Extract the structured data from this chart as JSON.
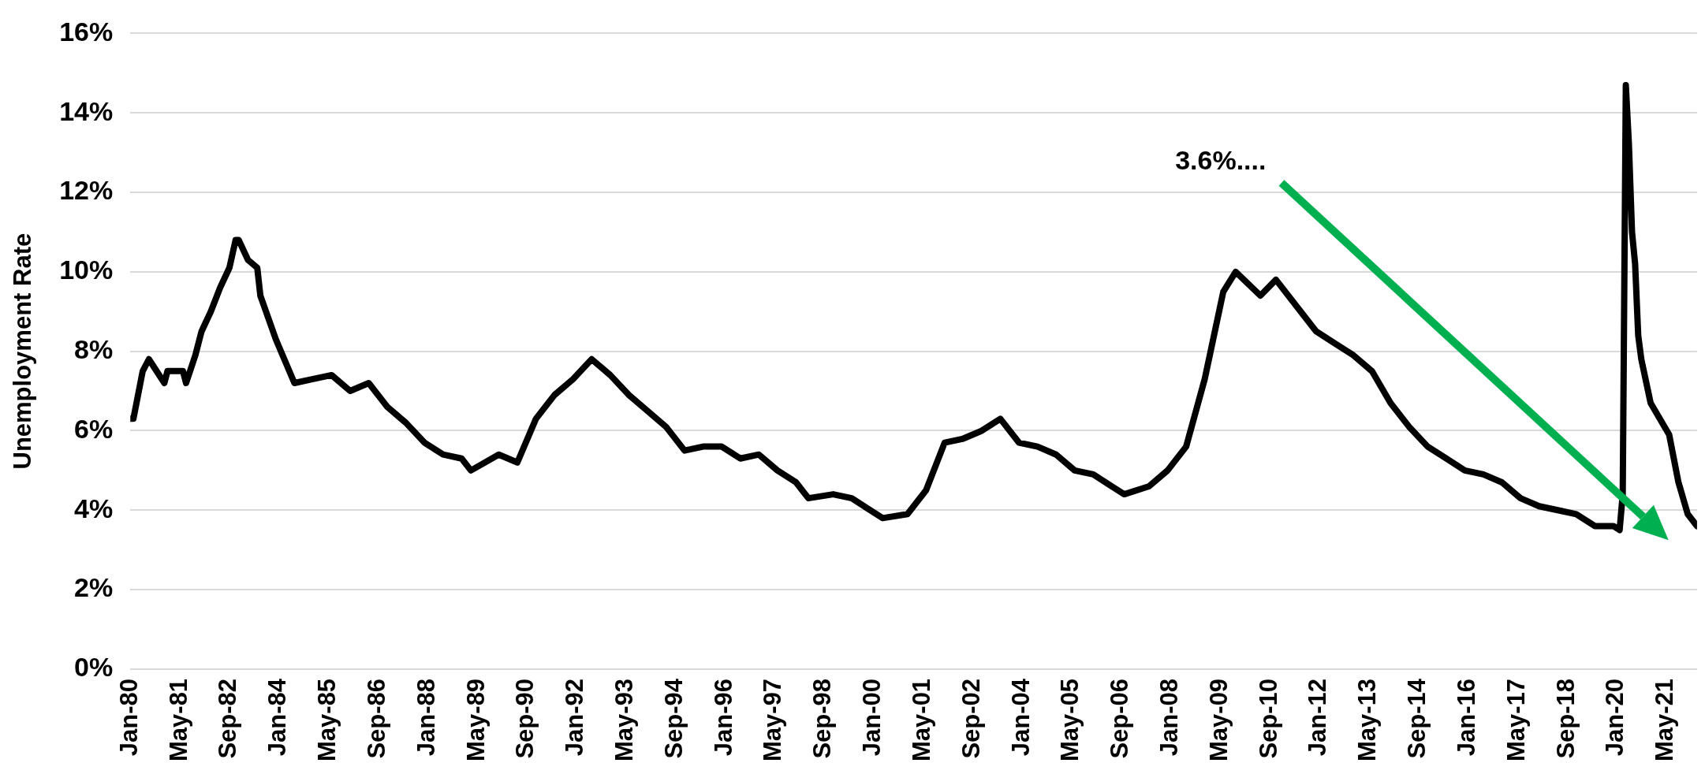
{
  "chart_data": {
    "type": "line",
    "ylabel": "Unemployment Rate",
    "color": "#000000",
    "grid": "y",
    "legend": false,
    "marker": "none",
    "line_style": "solid",
    "x": [
      "1980-01",
      "1980-02",
      "1980-05",
      "1980-07",
      "1980-12",
      "1981-01",
      "1981-06",
      "1981-07",
      "1981-10",
      "1981-12",
      "1982-03",
      "1982-06",
      "1982-09",
      "1982-11",
      "1982-12",
      "1983-03",
      "1983-06",
      "1983-07",
      "1983-12",
      "1984-06",
      "1984-12",
      "1985-06",
      "1985-12",
      "1986-06",
      "1986-12",
      "1987-06",
      "1987-12",
      "1988-06",
      "1988-12",
      "1989-03",
      "1989-12",
      "1990-06",
      "1990-12",
      "1991-06",
      "1991-12",
      "1992-06",
      "1992-12",
      "1993-06",
      "1993-12",
      "1994-06",
      "1994-12",
      "1995-06",
      "1995-12",
      "1996-06",
      "1996-12",
      "1997-06",
      "1997-12",
      "1998-04",
      "1998-12",
      "1999-06",
      "1999-12",
      "2000-04",
      "2000-12",
      "2001-06",
      "2001-12",
      "2002-06",
      "2002-12",
      "2003-06",
      "2003-12",
      "2004-06",
      "2004-12",
      "2005-06",
      "2005-12",
      "2006-06",
      "2006-10",
      "2007-06",
      "2007-12",
      "2008-06",
      "2008-12",
      "2009-06",
      "2009-10",
      "2010-06",
      "2010-11",
      "2011-06",
      "2011-12",
      "2012-06",
      "2012-12",
      "2013-06",
      "2013-12",
      "2014-06",
      "2014-12",
      "2015-06",
      "2015-12",
      "2016-06",
      "2016-12",
      "2017-06",
      "2017-12",
      "2018-06",
      "2018-12",
      "2019-06",
      "2019-12",
      "2020-02",
      "2020-03",
      "2020-04",
      "2020-05",
      "2020-06",
      "2020-07",
      "2020-08",
      "2020-09",
      "2020-12",
      "2021-06",
      "2021-09",
      "2021-12",
      "2022-03"
    ],
    "values": [
      6.3,
      6.3,
      7.5,
      7.8,
      7.2,
      7.5,
      7.5,
      7.2,
      7.9,
      8.5,
      9.0,
      9.6,
      10.1,
      10.8,
      10.8,
      10.3,
      10.1,
      9.4,
      8.3,
      7.2,
      7.3,
      7.4,
      7.0,
      7.2,
      6.6,
      6.2,
      5.7,
      5.4,
      5.3,
      5.0,
      5.4,
      5.2,
      6.3,
      6.9,
      7.3,
      7.8,
      7.4,
      6.9,
      6.5,
      6.1,
      5.5,
      5.6,
      5.6,
      5.3,
      5.4,
      5.0,
      4.7,
      4.3,
      4.4,
      4.3,
      4.0,
      3.8,
      3.9,
      4.5,
      5.7,
      5.8,
      6.0,
      6.3,
      5.7,
      5.6,
      5.4,
      5.0,
      4.9,
      4.6,
      4.4,
      4.6,
      5.0,
      5.6,
      7.3,
      9.5,
      10.0,
      9.4,
      9.8,
      9.1,
      8.5,
      8.2,
      7.9,
      7.5,
      6.7,
      6.1,
      5.6,
      5.3,
      5.0,
      4.9,
      4.7,
      4.3,
      4.1,
      4.0,
      3.9,
      3.6,
      3.6,
      3.5,
      4.4,
      14.7,
      13.2,
      11.0,
      10.2,
      8.4,
      7.8,
      6.7,
      5.9,
      4.7,
      3.9,
      3.6
    ],
    "xlim": [
      "1980-01",
      "2022-03"
    ],
    "xticks": [
      {
        "value": "1980-01",
        "label": "Jan-80"
      },
      {
        "value": "1981-05",
        "label": "May-81"
      },
      {
        "value": "1982-09",
        "label": "Sep-82"
      },
      {
        "value": "1984-01",
        "label": "Jan-84"
      },
      {
        "value": "1985-05",
        "label": "May-85"
      },
      {
        "value": "1986-09",
        "label": "Sep-86"
      },
      {
        "value": "1988-01",
        "label": "Jan-88"
      },
      {
        "value": "1989-05",
        "label": "May-89"
      },
      {
        "value": "1990-09",
        "label": "Sep-90"
      },
      {
        "value": "1992-01",
        "label": "Jan-92"
      },
      {
        "value": "1993-05",
        "label": "May-93"
      },
      {
        "value": "1994-09",
        "label": "Sep-94"
      },
      {
        "value": "1996-01",
        "label": "Jan-96"
      },
      {
        "value": "1997-05",
        "label": "May-97"
      },
      {
        "value": "1998-09",
        "label": "Sep-98"
      },
      {
        "value": "2000-01",
        "label": "Jan-00"
      },
      {
        "value": "2001-05",
        "label": "May-01"
      },
      {
        "value": "2002-09",
        "label": "Sep-02"
      },
      {
        "value": "2004-01",
        "label": "Jan-04"
      },
      {
        "value": "2005-05",
        "label": "May-05"
      },
      {
        "value": "2006-09",
        "label": "Sep-06"
      },
      {
        "value": "2008-01",
        "label": "Jan-08"
      },
      {
        "value": "2009-05",
        "label": "May-09"
      },
      {
        "value": "2010-09",
        "label": "Sep-10"
      },
      {
        "value": "2012-01",
        "label": "Jan-12"
      },
      {
        "value": "2013-05",
        "label": "May-13"
      },
      {
        "value": "2014-09",
        "label": "Sep-14"
      },
      {
        "value": "2016-01",
        "label": "Jan-16"
      },
      {
        "value": "2017-05",
        "label": "May-17"
      },
      {
        "value": "2018-09",
        "label": "Sep-18"
      },
      {
        "value": "2020-01",
        "label": "Jan-20"
      },
      {
        "value": "2021-05",
        "label": "May-21"
      }
    ],
    "ylim": [
      0,
      16
    ],
    "yticks": [
      {
        "value": 0,
        "label": "0%"
      },
      {
        "value": 2,
        "label": "2%"
      },
      {
        "value": 4,
        "label": "4%"
      },
      {
        "value": 6,
        "label": "6%"
      },
      {
        "value": 8,
        "label": "8%"
      },
      {
        "value": 10,
        "label": "10%"
      },
      {
        "value": 12,
        "label": "12%"
      },
      {
        "value": 14,
        "label": "14%"
      },
      {
        "value": 16,
        "label": "16%"
      }
    ],
    "annotations": [
      "3.6%...."
    ]
  }
}
